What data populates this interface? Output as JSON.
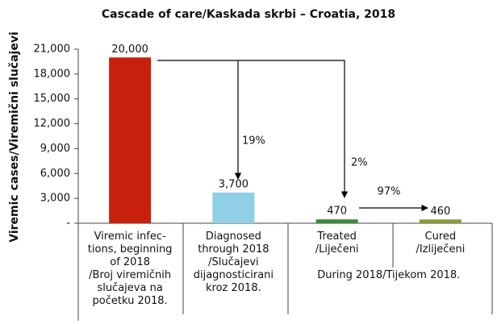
{
  "chart_data": {
    "type": "bar",
    "title": "Cascade of care/Kaskada skrbi – Croatia, 2018",
    "y_label": "Viremic cases/Viremični slučajevi",
    "categories": [
      "Viremic infec-\ntions, beginning\nof 2018\n/Broj viremičnih\nslučajeva na\npočetku 2018.",
      "Diagnosed\nthrough 2018\n/Slučajevi\ndijagnosticirani\nkroz 2018.",
      "Treated\n/Liječeni",
      "Cured\n/Izliječeni"
    ],
    "values": [
      20000,
      3700,
      470,
      460
    ],
    "value_labels": [
      "20,000",
      "3,700",
      "470",
      "460"
    ],
    "colors": [
      "#c9200e",
      "#8fd0e6",
      "#3a8c3a",
      "#8a9a3c"
    ],
    "group_label": "During 2018/Tijekom 2018.",
    "annotations": [
      "19%",
      "2%",
      "97%"
    ],
    "ylim": [
      0,
      21000
    ],
    "yticks": [
      {
        "value": 0,
        "label": "-"
      },
      {
        "value": 3000,
        "label": "3,000"
      },
      {
        "value": 6000,
        "label": "6,000"
      },
      {
        "value": 9000,
        "label": "9,000"
      },
      {
        "value": 12000,
        "label": "12,000"
      },
      {
        "value": 15000,
        "label": "15,000"
      },
      {
        "value": 18000,
        "label": "18,000"
      },
      {
        "value": 21000,
        "label": "21,000"
      }
    ]
  }
}
